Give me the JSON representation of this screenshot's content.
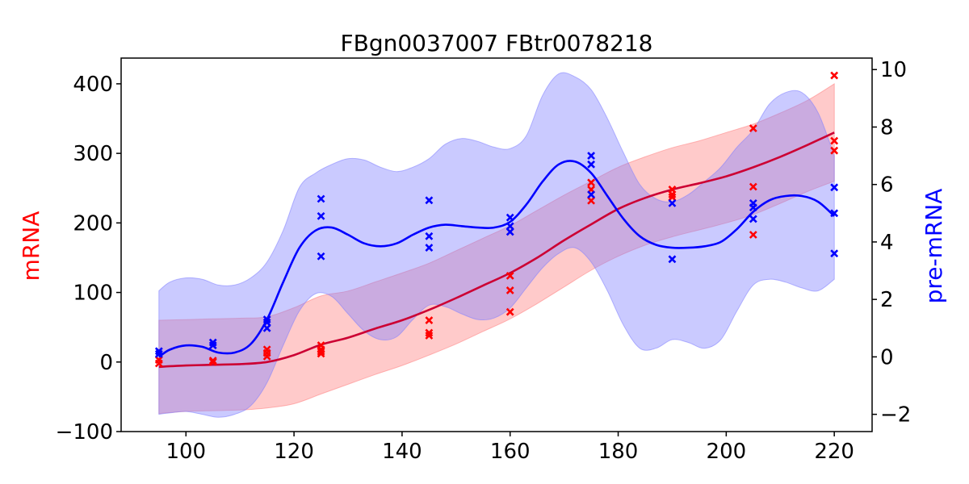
{
  "chart_data": {
    "type": "line",
    "title": "FBgn0037007 FBtr0078218",
    "xlabel": "",
    "ylabel_left": "mRNA",
    "ylabel_right": "pre-mRNA",
    "xlim": [
      88,
      227
    ],
    "ylim_left": [
      -100,
      437
    ],
    "ylim_right": [
      -2.6,
      10.4
    ],
    "x_ticks": [
      100,
      120,
      140,
      160,
      180,
      200,
      220
    ],
    "y_ticks_left": [
      -100,
      0,
      100,
      200,
      300,
      400
    ],
    "y_ticks_right": [
      -2,
      0,
      2,
      4,
      6,
      8,
      10
    ],
    "grid": false,
    "colors": {
      "mRNA": "#ff0000",
      "mRNA_mean": "#cc0033",
      "mRNA_band": "#ff8080",
      "pre_mRNA": "#0000ff",
      "pre_mRNA_band": "#8080ff"
    },
    "mrna_points": [
      [
        95,
        -2
      ],
      [
        95,
        3
      ],
      [
        105,
        0
      ],
      [
        105,
        2
      ],
      [
        115,
        8
      ],
      [
        115,
        13
      ],
      [
        115,
        18
      ],
      [
        125,
        12
      ],
      [
        125,
        15
      ],
      [
        125,
        18
      ],
      [
        125,
        24
      ],
      [
        145,
        38
      ],
      [
        145,
        42
      ],
      [
        145,
        60
      ],
      [
        160,
        72
      ],
      [
        160,
        103
      ],
      [
        160,
        124
      ],
      [
        175,
        232
      ],
      [
        175,
        248
      ],
      [
        175,
        258
      ],
      [
        190,
        237
      ],
      [
        190,
        241
      ],
      [
        190,
        248
      ],
      [
        205,
        183
      ],
      [
        205,
        252
      ],
      [
        205,
        336
      ],
      [
        220,
        304
      ],
      [
        220,
        318
      ],
      [
        220,
        412
      ]
    ],
    "premrna_points": [
      [
        95,
        0.1
      ],
      [
        95,
        0.2
      ],
      [
        105,
        0.4
      ],
      [
        105,
        0.5
      ],
      [
        115,
        1.0
      ],
      [
        115,
        1.2
      ],
      [
        115,
        1.3
      ],
      [
        125,
        3.5
      ],
      [
        125,
        4.9
      ],
      [
        125,
        5.5
      ],
      [
        145,
        3.8
      ],
      [
        145,
        4.2
      ],
      [
        145,
        5.45
      ],
      [
        160,
        4.35
      ],
      [
        160,
        4.55
      ],
      [
        160,
        4.85
      ],
      [
        175,
        5.65
      ],
      [
        175,
        6.7
      ],
      [
        175,
        7.0
      ],
      [
        190,
        3.4
      ],
      [
        190,
        5.35
      ],
      [
        205,
        4.8
      ],
      [
        205,
        5.2
      ],
      [
        205,
        5.35
      ],
      [
        220,
        3.6
      ],
      [
        220,
        5.0
      ],
      [
        220,
        5.9
      ]
    ],
    "mrna_mean": [
      [
        95,
        -7
      ],
      [
        100,
        -5
      ],
      [
        105,
        -4
      ],
      [
        110,
        -3
      ],
      [
        115,
        0
      ],
      [
        120,
        10
      ],
      [
        125,
        25
      ],
      [
        130,
        35
      ],
      [
        135,
        48
      ],
      [
        140,
        60
      ],
      [
        145,
        75
      ],
      [
        150,
        92
      ],
      [
        155,
        110
      ],
      [
        160,
        128
      ],
      [
        165,
        150
      ],
      [
        170,
        175
      ],
      [
        175,
        198
      ],
      [
        180,
        220
      ],
      [
        185,
        236
      ],
      [
        190,
        248
      ],
      [
        195,
        257
      ],
      [
        200,
        267
      ],
      [
        205,
        280
      ],
      [
        210,
        295
      ],
      [
        215,
        312
      ],
      [
        220,
        330
      ]
    ],
    "mrna_band_upper": [
      [
        95,
        60
      ],
      [
        100,
        61
      ],
      [
        105,
        62
      ],
      [
        110,
        63
      ],
      [
        115,
        65
      ],
      [
        120,
        78
      ],
      [
        125,
        95
      ],
      [
        130,
        102
      ],
      [
        135,
        115
      ],
      [
        140,
        128
      ],
      [
        145,
        142
      ],
      [
        150,
        160
      ],
      [
        155,
        178
      ],
      [
        160,
        196
      ],
      [
        165,
        218
      ],
      [
        170,
        240
      ],
      [
        175,
        260
      ],
      [
        180,
        280
      ],
      [
        185,
        295
      ],
      [
        190,
        308
      ],
      [
        195,
        318
      ],
      [
        200,
        330
      ],
      [
        205,
        342
      ],
      [
        210,
        358
      ],
      [
        215,
        376
      ],
      [
        220,
        400
      ]
    ],
    "mrna_band_lower": [
      [
        95,
        -74
      ],
      [
        100,
        -71
      ],
      [
        105,
        -70
      ],
      [
        110,
        -69
      ],
      [
        115,
        -66
      ],
      [
        120,
        -60
      ],
      [
        125,
        -46
      ],
      [
        130,
        -32
      ],
      [
        135,
        -18
      ],
      [
        140,
        -5
      ],
      [
        145,
        10
      ],
      [
        150,
        26
      ],
      [
        155,
        44
      ],
      [
        160,
        62
      ],
      [
        165,
        84
      ],
      [
        170,
        108
      ],
      [
        175,
        132
      ],
      [
        180,
        152
      ],
      [
        185,
        168
      ],
      [
        190,
        180
      ],
      [
        195,
        190
      ],
      [
        200,
        200
      ],
      [
        205,
        212
      ],
      [
        210,
        228
      ],
      [
        215,
        245
      ],
      [
        220,
        260
      ]
    ],
    "premrna_mean": [
      [
        95,
        0.0
      ],
      [
        97,
        0.25
      ],
      [
        100,
        0.4
      ],
      [
        103,
        0.35
      ],
      [
        106,
        0.15
      ],
      [
        109,
        0.15
      ],
      [
        112,
        0.45
      ],
      [
        115,
        1.3
      ],
      [
        118,
        2.6
      ],
      [
        121,
        3.8
      ],
      [
        124,
        4.4
      ],
      [
        127,
        4.5
      ],
      [
        130,
        4.25
      ],
      [
        133,
        3.95
      ],
      [
        136,
        3.85
      ],
      [
        139,
        3.95
      ],
      [
        142,
        4.25
      ],
      [
        145,
        4.5
      ],
      [
        148,
        4.6
      ],
      [
        151,
        4.55
      ],
      [
        154,
        4.5
      ],
      [
        157,
        4.5
      ],
      [
        160,
        4.7
      ],
      [
        163,
        5.3
      ],
      [
        166,
        6.1
      ],
      [
        169,
        6.7
      ],
      [
        172,
        6.8
      ],
      [
        175,
        6.4
      ],
      [
        178,
        5.6
      ],
      [
        181,
        4.8
      ],
      [
        184,
        4.2
      ],
      [
        187,
        3.9
      ],
      [
        190,
        3.8
      ],
      [
        193,
        3.8
      ],
      [
        196,
        3.85
      ],
      [
        199,
        4.0
      ],
      [
        202,
        4.45
      ],
      [
        205,
        5.05
      ],
      [
        208,
        5.45
      ],
      [
        211,
        5.6
      ],
      [
        214,
        5.6
      ],
      [
        217,
        5.4
      ],
      [
        220,
        4.9
      ]
    ],
    "premrna_band_upper": [
      [
        95,
        2.3
      ],
      [
        97,
        2.6
      ],
      [
        100,
        2.75
      ],
      [
        103,
        2.7
      ],
      [
        106,
        2.5
      ],
      [
        109,
        2.5
      ],
      [
        112,
        2.75
      ],
      [
        115,
        3.3
      ],
      [
        118,
        4.4
      ],
      [
        121,
        5.9
      ],
      [
        124,
        6.4
      ],
      [
        127,
        6.7
      ],
      [
        130,
        6.9
      ],
      [
        133,
        6.85
      ],
      [
        136,
        6.6
      ],
      [
        139,
        6.45
      ],
      [
        142,
        6.6
      ],
      [
        145,
        6.9
      ],
      [
        148,
        7.4
      ],
      [
        151,
        7.6
      ],
      [
        154,
        7.5
      ],
      [
        157,
        7.3
      ],
      [
        160,
        7.25
      ],
      [
        163,
        7.7
      ],
      [
        166,
        9.1
      ],
      [
        169,
        9.85
      ],
      [
        172,
        9.75
      ],
      [
        175,
        9.3
      ],
      [
        178,
        8.3
      ],
      [
        181,
        7.1
      ],
      [
        184,
        6.0
      ],
      [
        187,
        5.5
      ],
      [
        190,
        5.4
      ],
      [
        193,
        5.65
      ],
      [
        196,
        6.1
      ],
      [
        199,
        6.6
      ],
      [
        202,
        7.3
      ],
      [
        205,
        7.9
      ],
      [
        208,
        8.8
      ],
      [
        211,
        9.2
      ],
      [
        214,
        9.2
      ],
      [
        217,
        8.5
      ],
      [
        220,
        7.0
      ]
    ],
    "premrna_band_lower": [
      [
        95,
        -2.0
      ],
      [
        97,
        -1.95
      ],
      [
        100,
        -1.9
      ],
      [
        103,
        -2.0
      ],
      [
        106,
        -2.1
      ],
      [
        109,
        -2.0
      ],
      [
        112,
        -1.7
      ],
      [
        115,
        -0.9
      ],
      [
        118,
        0.4
      ],
      [
        121,
        1.6
      ],
      [
        124,
        2.2
      ],
      [
        127,
        2.1
      ],
      [
        130,
        1.5
      ],
      [
        133,
        0.9
      ],
      [
        136,
        0.6
      ],
      [
        139,
        0.7
      ],
      [
        142,
        1.3
      ],
      [
        145,
        1.8
      ],
      [
        148,
        1.75
      ],
      [
        151,
        1.5
      ],
      [
        154,
        1.3
      ],
      [
        157,
        1.35
      ],
      [
        160,
        1.7
      ],
      [
        163,
        2.4
      ],
      [
        166,
        3.1
      ],
      [
        169,
        3.6
      ],
      [
        172,
        3.8
      ],
      [
        175,
        3.3
      ],
      [
        178,
        2.3
      ],
      [
        181,
        1.1
      ],
      [
        184,
        0.3
      ],
      [
        187,
        0.3
      ],
      [
        190,
        0.6
      ],
      [
        193,
        0.5
      ],
      [
        196,
        0.3
      ],
      [
        199,
        0.6
      ],
      [
        202,
        1.6
      ],
      [
        205,
        2.5
      ],
      [
        208,
        2.7
      ],
      [
        211,
        2.6
      ],
      [
        214,
        2.4
      ],
      [
        217,
        2.3
      ],
      [
        220,
        2.7
      ]
    ]
  }
}
